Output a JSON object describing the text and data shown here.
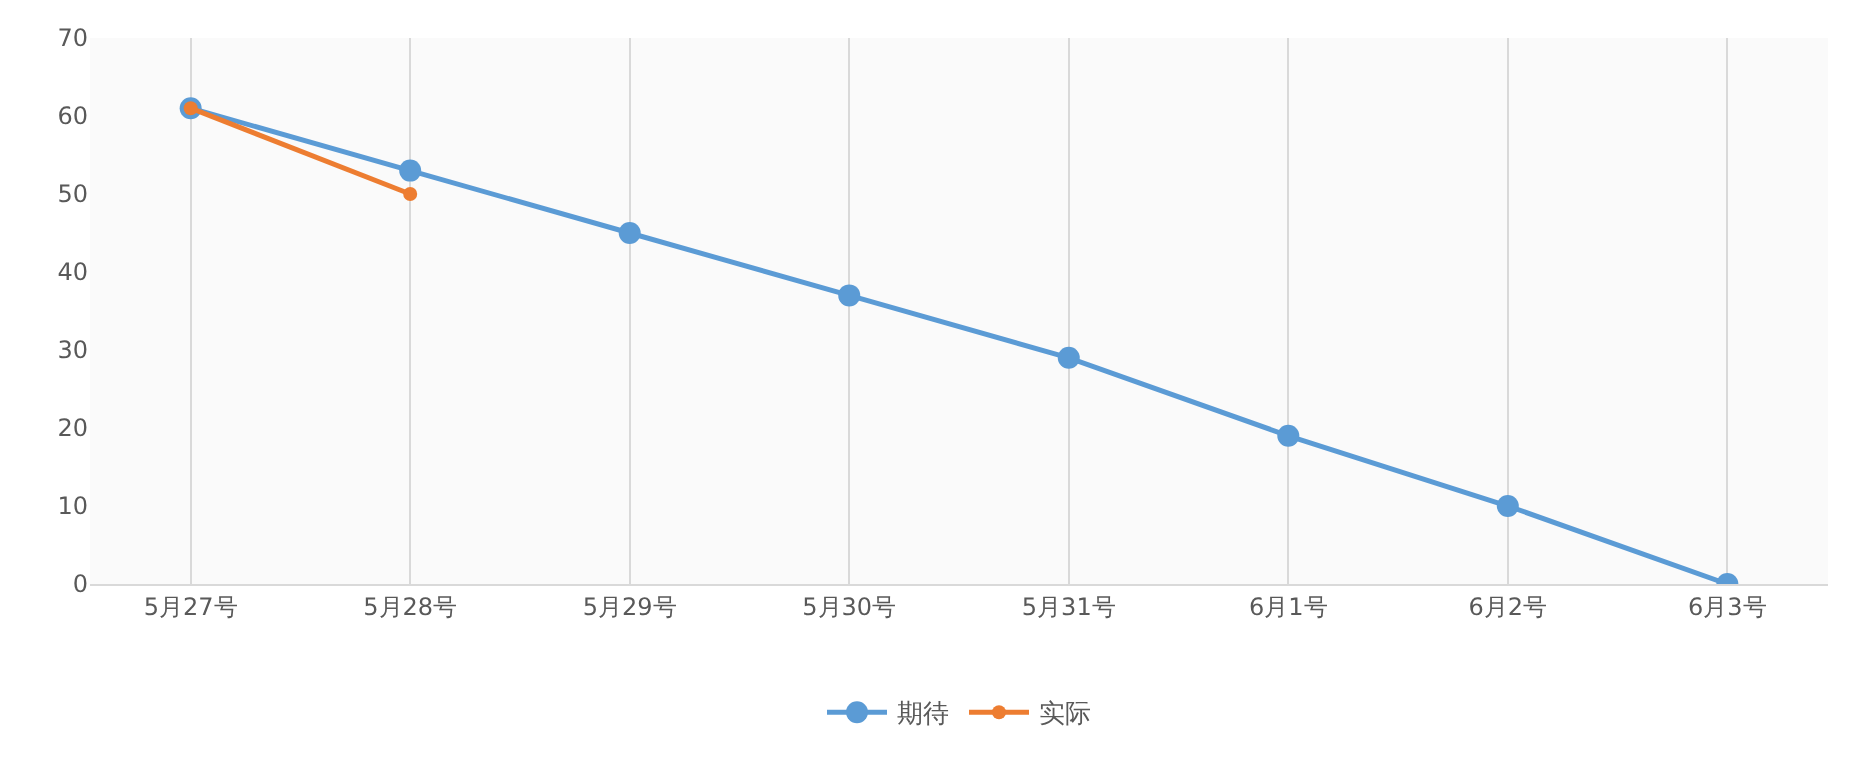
{
  "chart_data": {
    "type": "line",
    "categories": [
      "5月27号",
      "5月28号",
      "5月29号",
      "5月30号",
      "5月31号",
      "6月1号",
      "6月2号",
      "6月3号"
    ],
    "series": [
      {
        "name": "期待",
        "color": "#5b9bd5",
        "values": [
          61,
          53,
          45,
          37,
          29,
          19,
          10,
          0
        ]
      },
      {
        "name": "实际",
        "color": "#ed7d31",
        "values": [
          61,
          50,
          null,
          null,
          null,
          null,
          null,
          null
        ]
      }
    ],
    "ylim": [
      0,
      70
    ],
    "yticks": [
      0,
      10,
      20,
      30,
      40,
      50,
      60,
      70
    ],
    "grid": "x",
    "legend": "bottom",
    "marker": "circle",
    "line_style": "solid"
  }
}
